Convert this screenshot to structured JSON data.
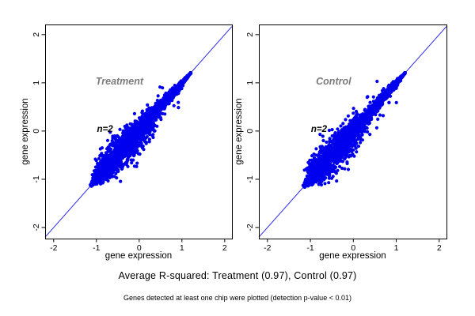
{
  "captions": {
    "r_squared": "Average R-squared: Treatment (0.97), Control (0.97)",
    "note": "Genes detected at least one chip were plotted (detection p-value < 0.01)"
  },
  "chart_data": {
    "type": "scatter",
    "description": "Two-panel replicate-correlation scatterplots of gene expression (Treatment vs Control), dense blue point clouds along the y=x identity line",
    "colors": {
      "point": "#0000ee",
      "identity_line": "#2a2af0",
      "panel_label": "#7b7b7b",
      "annotation": "#000000",
      "axis": "#000000",
      "background": "#ffffff"
    },
    "axes": {
      "xlabel": "gene expression",
      "ylabel": "gene expression",
      "xlim": [
        -2.2,
        2.17
      ],
      "ylim": [
        -2.23,
        2.21
      ],
      "x_tick_values": [
        -2,
        -1,
        0,
        1,
        2
      ],
      "y_tick_values": [
        -2,
        -1,
        0,
        1,
        2
      ],
      "grid": false,
      "box": true
    },
    "identity_line": {
      "slope": 1,
      "intercept": 0
    },
    "panels": [
      {
        "label": "Treatment",
        "annotation": "n=2",
        "r_squared": 0.97,
        "label_pos": [
          -0.46,
          1.03
        ],
        "annotation_pos": [
          -0.8,
          0.03
        ],
        "cloud": {
          "seed": 20111,
          "count": 2300,
          "outliers": 26,
          "t_min": -1.13,
          "t_max": 1.21,
          "sigma_base": 0.03,
          "sigma_peak": 0.115,
          "sigma_center": -0.35,
          "sigma_width": 0.5,
          "bias_exp": 1.3,
          "point_radius": 2.1
        }
      },
      {
        "label": "Control",
        "annotation": "n=2",
        "r_squared": 0.97,
        "label_pos": [
          -0.46,
          1.03
        ],
        "annotation_pos": [
          -0.8,
          0.03
        ],
        "cloud": {
          "seed": 7771,
          "count": 2300,
          "outliers": 24,
          "t_min": -1.15,
          "t_max": 1.21,
          "sigma_base": 0.03,
          "sigma_peak": 0.115,
          "sigma_center": -0.45,
          "sigma_width": 0.5,
          "bias_exp": 1.3,
          "point_radius": 2.1
        }
      }
    ]
  }
}
